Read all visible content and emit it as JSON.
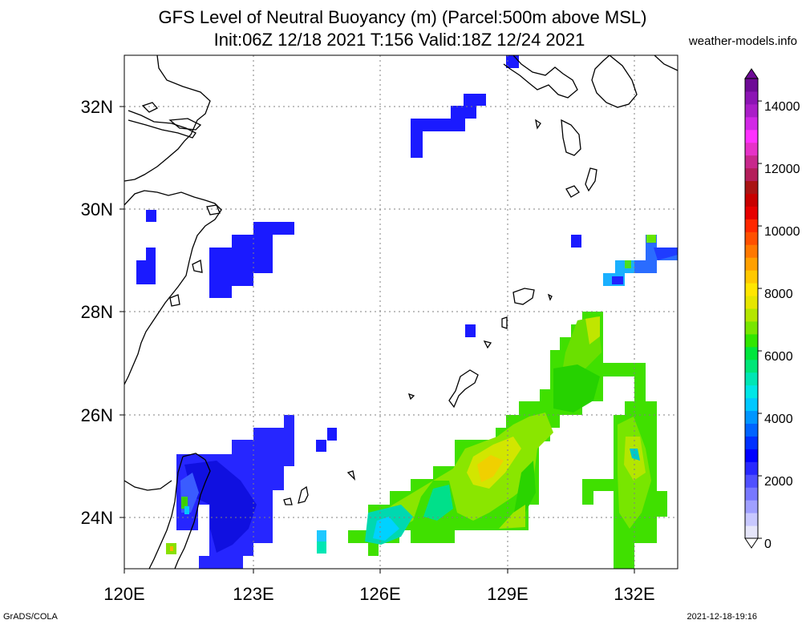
{
  "title_line1": "GFS Level of Neutral Buoyancy (m) (Parcel:500m above MSL)",
  "title_line2": "Init:06Z 12/18 2021 T:156 Valid:18Z 12/24 2021",
  "credit": "weather-models.info",
  "footer_left": "GrADS/COLA",
  "footer_right": "2021-12-18-19:16",
  "map": {
    "lon_range": [
      120,
      133
    ],
    "lat_range": [
      23,
      33
    ],
    "x_ticks": [
      "120E",
      "123E",
      "126E",
      "129E",
      "132E"
    ],
    "y_ticks": [
      "24N",
      "26N",
      "28N",
      "30N",
      "32N"
    ],
    "grid": true
  },
  "colorbar": {
    "labels": [
      "0",
      "2000",
      "4000",
      "6000",
      "8000",
      "10000",
      "12000",
      "14000"
    ],
    "colors": [
      "#e6e6fa",
      "#c8c8ff",
      "#a0a0ff",
      "#7878ff",
      "#5050ff",
      "#2828ff",
      "#0000ff",
      "#0030ff",
      "#0064ff",
      "#0096ff",
      "#00c8ff",
      "#00e6e6",
      "#00e6b4",
      "#00e678",
      "#00e63c",
      "#32e600",
      "#78e600",
      "#b4e600",
      "#e6e600",
      "#ffe600",
      "#ffc800",
      "#ffa000",
      "#ff7800",
      "#ff5000",
      "#ff2800",
      "#e60000",
      "#c80000",
      "#aa1414",
      "#b41e5a",
      "#c8288c",
      "#e632c8",
      "#ff32ff",
      "#d228e6",
      "#aa1ec8",
      "#8c14b4",
      "#6e0a96"
    ]
  }
}
